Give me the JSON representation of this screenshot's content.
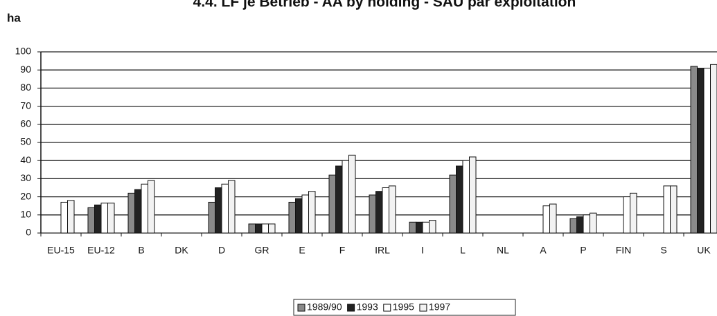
{
  "chart_data": {
    "type": "bar",
    "title": "4.4.   LF je Betrieb - AA by holding - SAU par exploitation",
    "y_label": "ha",
    "categories": [
      "EU-15",
      "EU-12",
      "B",
      "DK",
      "D",
      "GR",
      "E",
      "F",
      "IRL",
      "I",
      "L",
      "NL",
      "A",
      "P",
      "FIN",
      "S",
      "UK"
    ],
    "series": [
      {
        "name": "1989/90",
        "color": "#8a8a8a",
        "values": [
          null,
          14,
          22,
          null,
          17,
          5,
          17,
          32,
          21,
          6,
          32,
          null,
          null,
          8,
          null,
          null,
          92
        ]
      },
      {
        "name": "1993",
        "color": "#222222",
        "values": [
          null,
          15.5,
          24,
          null,
          25,
          5,
          19,
          37,
          23,
          6,
          37,
          null,
          null,
          9,
          null,
          null,
          91
        ]
      },
      {
        "name": "1995",
        "color": "#ffffff",
        "values": [
          17,
          16.5,
          27,
          null,
          27,
          5,
          21,
          40,
          25,
          6,
          40,
          null,
          15,
          10,
          20,
          26,
          91
        ]
      },
      {
        "name": "1997",
        "color": "#f2f2f2",
        "values": [
          18,
          16.5,
          29,
          null,
          29,
          5,
          23,
          43,
          26,
          7,
          42,
          null,
          16,
          11,
          22,
          26,
          93
        ]
      }
    ],
    "ylim": [
      0,
      100
    ],
    "yticks": [
      0,
      10,
      20,
      30,
      40,
      50,
      60,
      70,
      80,
      90,
      100
    ],
    "grid": true,
    "legend": "bottom"
  }
}
